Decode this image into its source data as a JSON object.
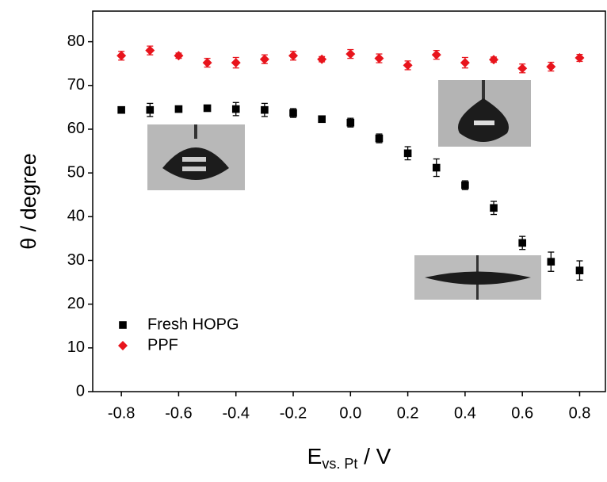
{
  "chart_data": {
    "type": "scatter",
    "y_label": "θ / degree",
    "x_label": "E",
    "x_label_subscript": "vs. Pt",
    "x_label_suffix": " / V",
    "x": [
      -0.8,
      -0.7,
      -0.6,
      -0.5,
      -0.4,
      -0.3,
      -0.2,
      -0.1,
      0,
      0.1,
      0.2,
      0.3,
      0.4,
      0.5,
      0.6,
      0.7,
      0.8
    ],
    "series": [
      {
        "name": "Fresh HOPG",
        "color": "#000000",
        "marker": "square",
        "values": [
          64.4,
          64.4,
          64.6,
          64.8,
          64.6,
          64.4,
          63.7,
          62.3,
          61.5,
          57.9,
          54.5,
          51.2,
          47.2,
          42.0,
          34.0,
          29.7,
          27.7
        ],
        "errors": [
          0.6,
          1.5,
          0.6,
          0.6,
          1.5,
          1.5,
          1.0,
          0.6,
          1.0,
          1.0,
          1.5,
          2.0,
          1.0,
          1.5,
          1.5,
          2.2,
          2.2
        ]
      },
      {
        "name": "PPF",
        "color": "#e8141c",
        "marker": "diamond",
        "values": [
          76.8,
          78.0,
          76.8,
          75.2,
          75.2,
          76.0,
          76.8,
          76.0,
          77.2,
          76.2,
          74.6,
          77.0,
          75.2,
          75.9,
          73.9,
          74.3,
          76.3
        ],
        "errors": [
          1.0,
          1.0,
          0.6,
          1.0,
          1.2,
          1.0,
          1.0,
          0.6,
          1.0,
          1.0,
          1.0,
          1.0,
          1.2,
          0.6,
          1.0,
          1.0,
          0.8
        ]
      }
    ],
    "xlim": [
      -0.9,
      0.89
    ],
    "ylim": [
      0,
      87
    ],
    "xticks": [
      -0.8,
      -0.6,
      -0.4,
      -0.2,
      {
        "value": 0,
        "label": "0.0"
      },
      0.2,
      0.4,
      0.6,
      0.8
    ],
    "yticks": [
      0,
      10,
      20,
      30,
      40,
      50,
      60,
      70,
      80
    ],
    "legend": "lower left",
    "grid": false
  }
}
